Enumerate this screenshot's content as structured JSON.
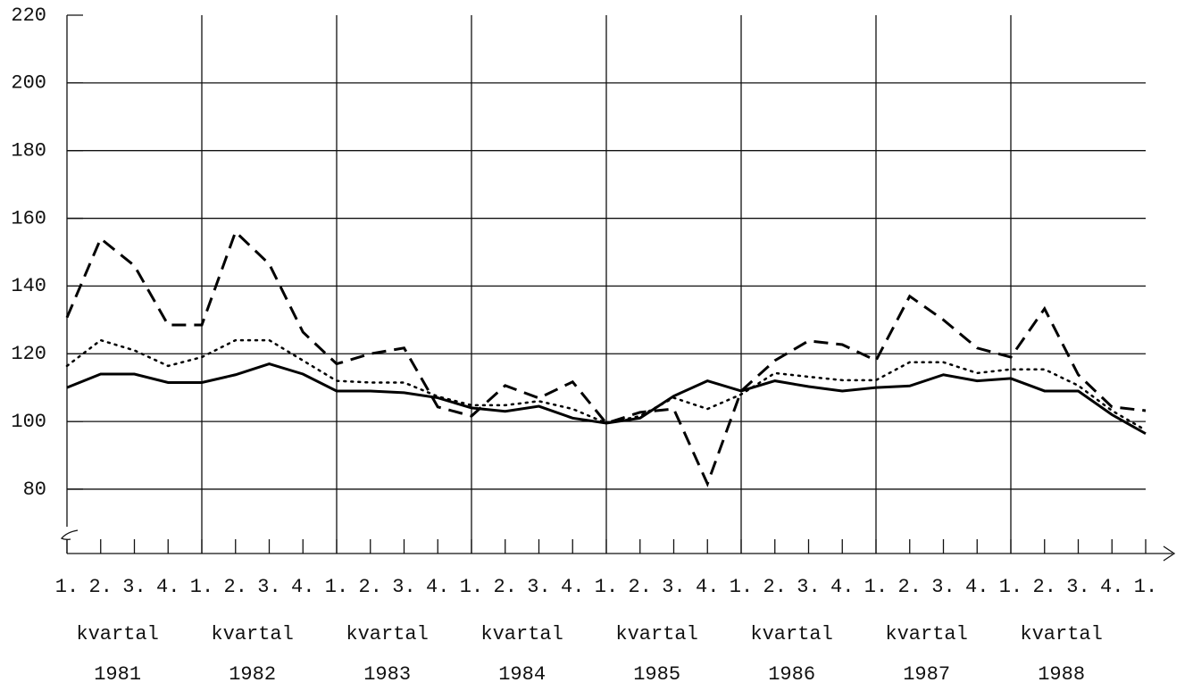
{
  "chart_data": {
    "type": "line",
    "categories": [
      "1.",
      "2.",
      "3.",
      "4.",
      "1.",
      "2.",
      "3.",
      "4.",
      "1.",
      "2.",
      "3.",
      "4.",
      "1.",
      "2.",
      "3.",
      "4.",
      "1.",
      "2.",
      "3.",
      "4.",
      "1.",
      "2.",
      "3.",
      "4.",
      "1.",
      "2.",
      "3.",
      "4.",
      "1.",
      "2.",
      "3.",
      "4.",
      "1."
    ],
    "x_groups": [
      {
        "label": "kvartal",
        "year": 1981
      },
      {
        "label": "kvartal",
        "year": 1982
      },
      {
        "label": "kvartal",
        "year": 1983
      },
      {
        "label": "kvartal",
        "year": 1984
      },
      {
        "label": "kvartal",
        "year": 1985
      },
      {
        "label": "kvartal",
        "year": 1986
      },
      {
        "label": "kvartal",
        "year": 1987
      },
      {
        "label": "kvartal",
        "year": 1988
      }
    ],
    "ylim": [
      61,
      220
    ],
    "yticks": [
      80,
      100,
      120,
      140,
      160,
      180,
      200,
      220
    ],
    "grid": true,
    "series": [
      {
        "color": "#000000",
        "style": "solid",
        "values": [
          110,
          114,
          114,
          111.5,
          111.5,
          113.8,
          117,
          114,
          109,
          109,
          108.5,
          107,
          104,
          103,
          104.5,
          101,
          99.5,
          101,
          107.5,
          112,
          109,
          112,
          110.3,
          109,
          110,
          110.5,
          113.8,
          112,
          112.7,
          109,
          109,
          102,
          96.4
        ]
      },
      {
        "color": "#000000",
        "style": "dotted",
        "values": [
          116.4,
          124,
          121,
          116.4,
          119,
          124,
          124,
          118,
          112,
          111.5,
          111.5,
          107.4,
          104.8,
          104.8,
          106,
          103.7,
          99.5,
          101.6,
          107,
          103.7,
          108,
          114.3,
          113.2,
          112.2,
          112.2,
          117.5,
          117.5,
          114.3,
          115.4,
          115.4,
          110.6,
          103.2,
          97.4
        ]
      },
      {
        "color": "#000000",
        "style": "dashed",
        "values": [
          130.7,
          154,
          146,
          128.5,
          128.5,
          156,
          146.5,
          126.4,
          117,
          120,
          121.7,
          104.3,
          101.6,
          110.6,
          106.9,
          111.7,
          99.5,
          102.7,
          103.7,
          81.6,
          109,
          118,
          123.8,
          122.7,
          118,
          137,
          130,
          121.7,
          119,
          133.3,
          113.8,
          104.3,
          103.2
        ]
      }
    ]
  }
}
